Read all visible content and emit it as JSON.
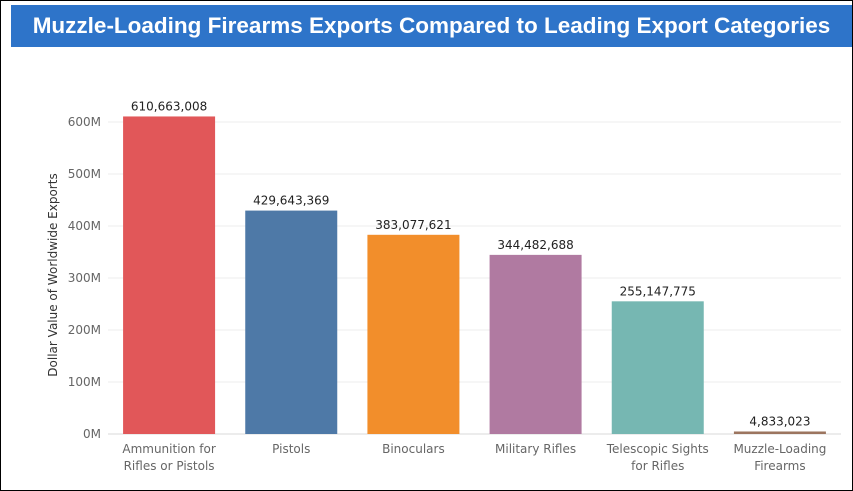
{
  "title": "Muzzle-Loading Firearms Exports Compared to Leading Export Categories",
  "colors": {
    "title_bar": "#2e74c9",
    "title_text": "#ffffff"
  },
  "chart_data": {
    "type": "bar",
    "title": "Muzzle-Loading Firearms Exports Compared to Leading Export Categories",
    "xlabel": "",
    "ylabel": "Dollar Value of Worldwide Exports",
    "ylim": [
      0,
      650000000
    ],
    "yticks": [
      0,
      100000000,
      200000000,
      300000000,
      400000000,
      500000000,
      600000000
    ],
    "ytick_labels": [
      "0M",
      "100M",
      "200M",
      "300M",
      "400M",
      "500M",
      "600M"
    ],
    "grid": true,
    "legend": "none",
    "categories": [
      [
        "Ammunition for",
        "Rifles or Pistols"
      ],
      [
        "Pistols"
      ],
      [
        "Binoculars"
      ],
      [
        "Military Rifles"
      ],
      [
        "Telescopic Sights",
        "for Rifles"
      ],
      [
        "Muzzle-Loading",
        "Firearms"
      ]
    ],
    "values": [
      610663008,
      429643369,
      383077621,
      344482688,
      255147775,
      4833023
    ],
    "value_labels": [
      "610,663,008",
      "429,643,369",
      "383,077,621",
      "344,482,688",
      "255,147,775",
      "4,833,023"
    ],
    "colors": [
      "#e15759",
      "#4e79a7",
      "#f28e2b",
      "#b07aa1",
      "#76b7b2",
      "#9c755f"
    ]
  }
}
